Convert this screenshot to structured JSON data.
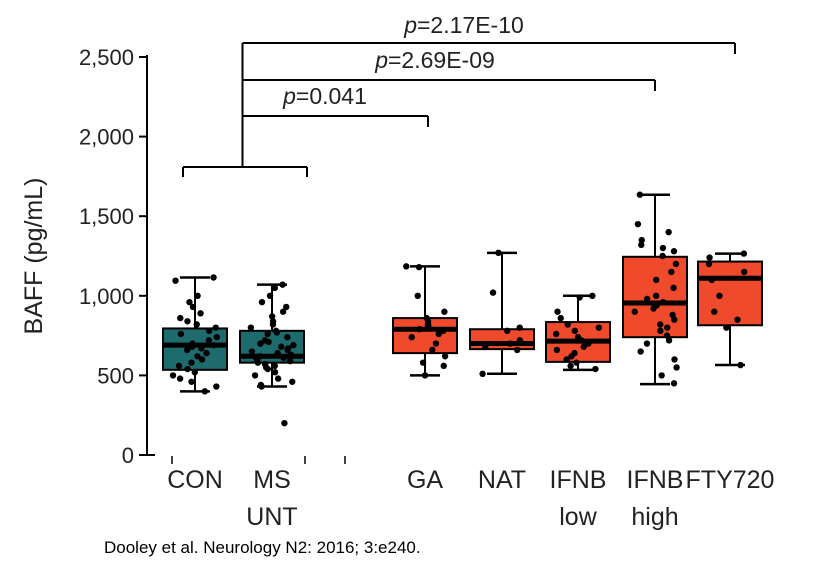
{
  "chart_data": {
    "type": "box",
    "ylabel": "BAFF (pg/mL)",
    "ylim": [
      0,
      2500
    ],
    "yticks": [
      "0",
      "500",
      "1,000",
      "1,500",
      "2,000",
      "2,500"
    ],
    "yticks_values": [
      0,
      500,
      1000,
      1500,
      2000,
      2500
    ],
    "grid": false,
    "groups": [
      {
        "label": [
          "CON"
        ],
        "color": "#1e6b6e",
        "whisker_low": 400,
        "q1": 535,
        "median": 690,
        "q3": 795,
        "whisker_high": 1115,
        "points": [
          1115,
          1095,
          1000,
          960,
          930,
          890,
          860,
          840,
          820,
          800,
          780,
          760,
          740,
          720,
          700,
          690,
          680,
          670,
          660,
          640,
          620,
          600,
          580,
          560,
          540,
          520,
          500,
          480,
          460,
          430,
          400
        ]
      },
      {
        "label": [
          "MS",
          "UNT"
        ],
        "color": "#1e6b6e",
        "whisker_low": 430,
        "q1": 580,
        "median": 620,
        "q3": 780,
        "whisker_high": 1070,
        "points": [
          1070,
          1050,
          1000,
          960,
          930,
          900,
          870,
          840,
          820,
          800,
          780,
          770,
          760,
          740,
          720,
          710,
          700,
          690,
          680,
          670,
          660,
          650,
          640,
          630,
          620,
          610,
          600,
          590,
          580,
          570,
          560,
          550,
          540,
          520,
          500,
          480,
          460,
          440,
          430,
          200
        ]
      },
      {
        "label": [
          "GA"
        ],
        "color": "#f04a2c",
        "whisker_low": 500,
        "q1": 640,
        "median": 790,
        "q3": 860,
        "whisker_high": 1185,
        "points": [
          1185,
          1180,
          1000,
          900,
          860,
          840,
          820,
          810,
          800,
          790,
          780,
          760,
          740,
          700,
          660,
          620,
          580,
          560,
          500
        ]
      },
      {
        "label": [
          "NAT"
        ],
        "color": "#f04a2c",
        "whisker_low": 510,
        "q1": 665,
        "median": 700,
        "q3": 790,
        "whisker_high": 1270,
        "points": [
          1270,
          1020,
          800,
          780,
          720,
          700,
          680,
          660,
          510
        ]
      },
      {
        "label": [
          "IFNB",
          "low"
        ],
        "color": "#f04a2c",
        "whisker_low": 535,
        "q1": 585,
        "median": 715,
        "q3": 835,
        "whisker_high": 1000,
        "points": [
          1000,
          990,
          900,
          860,
          820,
          800,
          780,
          760,
          740,
          720,
          700,
          680,
          660,
          640,
          620,
          600,
          580,
          560,
          540
        ]
      },
      {
        "label": [
          "IFNB",
          "high"
        ],
        "color": "#f04a2c",
        "whisker_low": 445,
        "q1": 740,
        "median": 955,
        "q3": 1245,
        "whisker_high": 1635,
        "points": [
          1635,
          1450,
          1400,
          1350,
          1320,
          1300,
          1280,
          1250,
          1200,
          1150,
          1100,
          1050,
          1000,
          980,
          960,
          940,
          920,
          900,
          880,
          850,
          820,
          800,
          780,
          750,
          720,
          700,
          650,
          600,
          550,
          500,
          450
        ]
      },
      {
        "label": [
          "FTY720"
        ],
        "color": "#f04a2c",
        "whisker_low": 565,
        "q1": 815,
        "median": 1110,
        "q3": 1215,
        "whisker_high": 1265,
        "points": [
          1265,
          1240,
          1200,
          1150,
          1100,
          1000,
          900,
          850,
          800,
          565
        ]
      }
    ],
    "annotations": [
      {
        "text_italic": "p",
        "text": "=0.041",
        "from": "CON+MS UNT",
        "to": "GA"
      },
      {
        "text_italic": "p",
        "text": "=2.69E-09",
        "from": "CON+MS UNT",
        "to": "IFNB high"
      },
      {
        "text_italic": "p",
        "text": "=2.17E-10",
        "from": "CON+MS UNT",
        "to": "FTY720"
      }
    ]
  },
  "citation": "Dooley et al.  Neurology N2: 2016; 3:e240."
}
